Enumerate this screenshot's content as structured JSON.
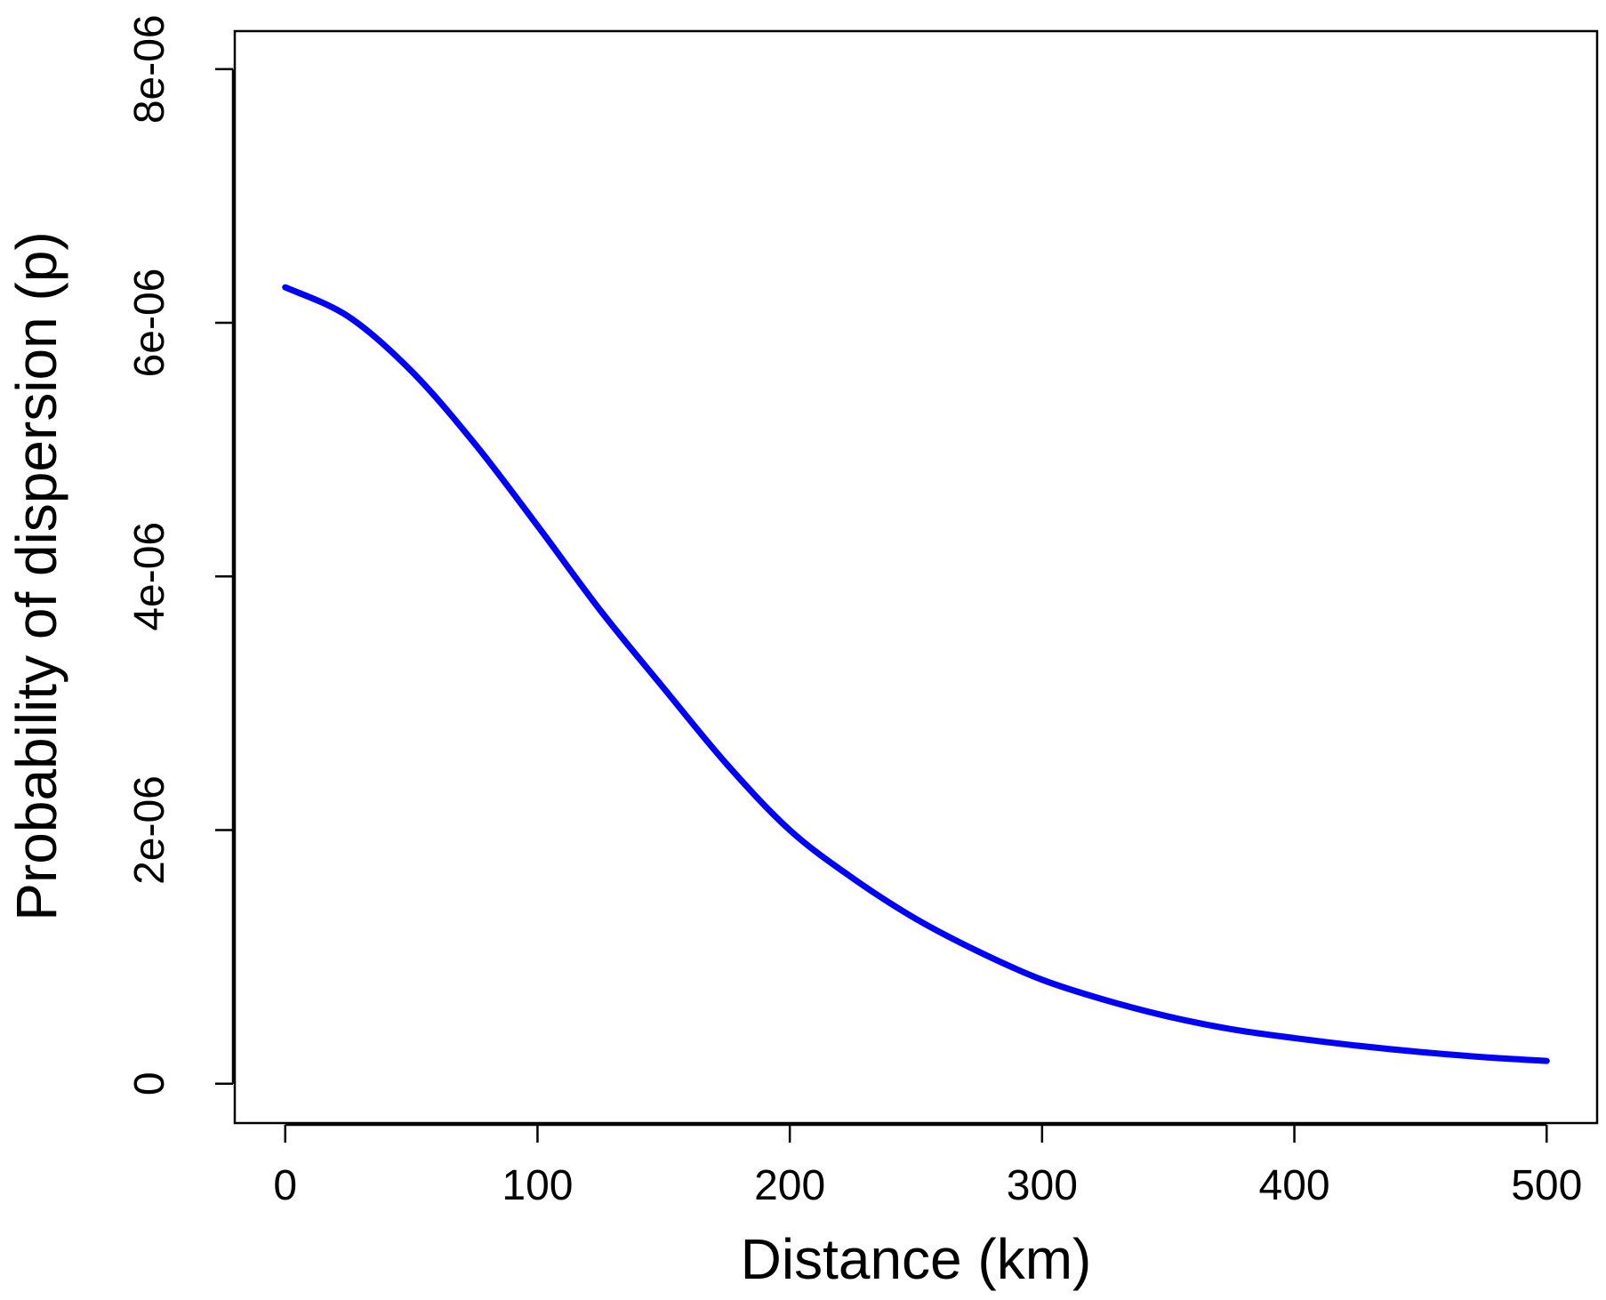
{
  "chart_data": {
    "type": "line",
    "title": "",
    "xlabel": "Distance (km)",
    "ylabel": "Probability of dispersion (p)",
    "xlim": [
      -20,
      520
    ],
    "ylim": [
      -3.1e-07,
      8.3e-06
    ],
    "x_ticks": [
      0,
      100,
      200,
      300,
      400,
      500
    ],
    "x_tick_labels": [
      "0",
      "100",
      "200",
      "300",
      "400",
      "500"
    ],
    "y_ticks": [
      0,
      2e-06,
      4e-06,
      6e-06,
      8e-06
    ],
    "y_tick_labels": [
      "0",
      "2e-06",
      "4e-06",
      "6e-06",
      "8e-06"
    ],
    "grid": false,
    "series": [
      {
        "color": "#0000ff",
        "x": [
          0,
          25,
          50,
          75,
          100,
          125,
          150,
          175,
          200,
          225,
          250,
          275,
          300,
          325,
          350,
          375,
          400,
          425,
          450,
          475,
          500
        ],
        "y": [
          6.28e-06,
          6.05e-06,
          5.62e-06,
          5.05e-06,
          4.4e-06,
          3.73e-06,
          3.12e-06,
          2.52e-06,
          2e-06,
          1.62e-06,
          1.3e-06,
          1.04e-06,
          8.2e-07,
          6.6e-07,
          5.3e-07,
          4.3e-07,
          3.6e-07,
          3e-07,
          2.5e-07,
          2.1e-07,
          1.8e-07
        ]
      }
    ]
  }
}
